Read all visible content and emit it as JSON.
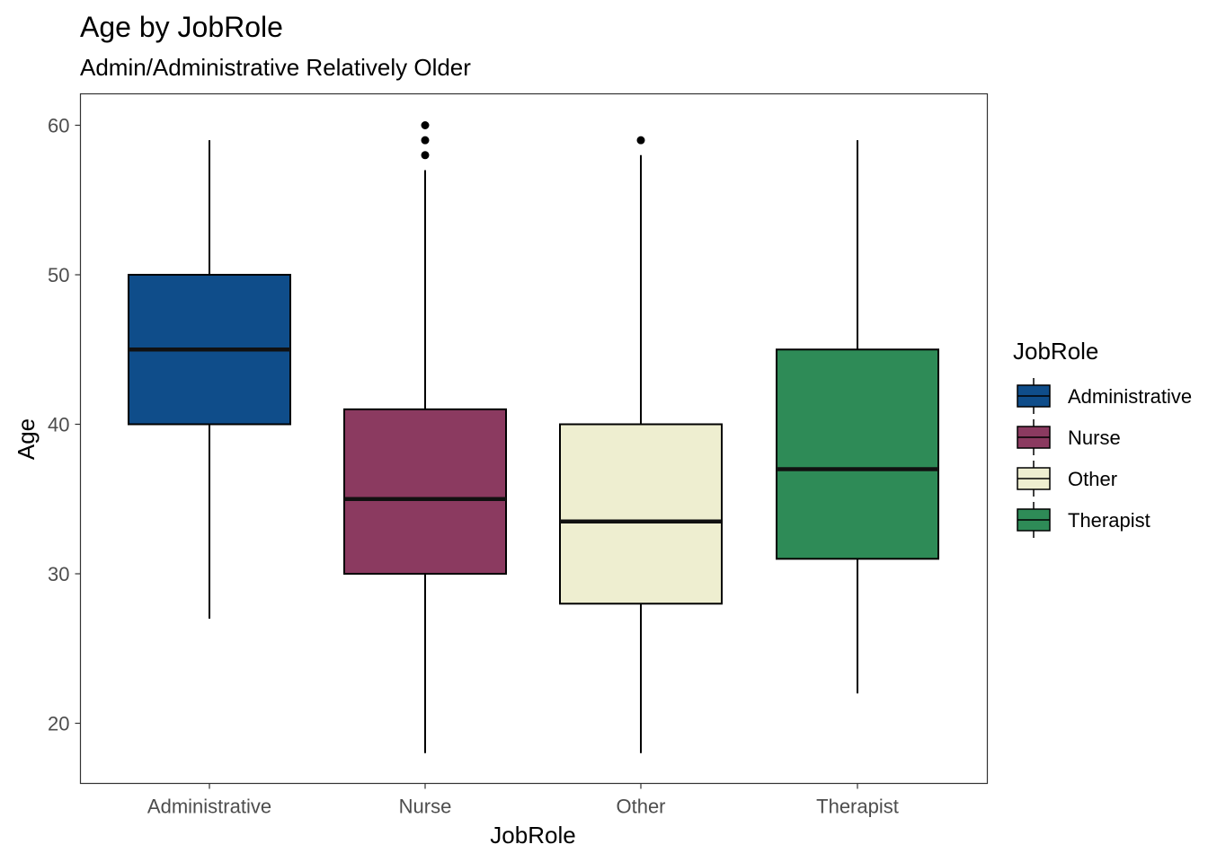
{
  "chart_data": {
    "type": "boxplot",
    "title": "Age by JobRole",
    "subtitle": "Admin/Administrative Relatively Older",
    "xlabel": "JobRole",
    "ylabel": "Age",
    "ylim": [
      16,
      62
    ],
    "y_ticks": [
      20,
      30,
      40,
      50,
      60
    ],
    "grid": false,
    "legend": {
      "title": "JobRole",
      "position": "right"
    },
    "categories": [
      "Administrative",
      "Nurse",
      "Other",
      "Therapist"
    ],
    "boxes": [
      {
        "category": "Administrative",
        "min": 27,
        "q1": 40,
        "median": 45,
        "q3": 50,
        "max": 59,
        "outliers": [],
        "color": "#0f4d8a"
      },
      {
        "category": "Nurse",
        "min": 18,
        "q1": 30,
        "median": 35,
        "q3": 41,
        "max": 57,
        "outliers": [
          58,
          59,
          60
        ],
        "color": "#8b3a60"
      },
      {
        "category": "Other",
        "min": 18,
        "q1": 28,
        "median": 33.5,
        "q3": 40,
        "max": 58,
        "outliers": [
          59
        ],
        "color": "#eeeed0"
      },
      {
        "category": "Therapist",
        "min": 22,
        "q1": 31,
        "median": 37,
        "q3": 45,
        "max": 59,
        "outliers": [],
        "color": "#2e8b57"
      }
    ]
  }
}
